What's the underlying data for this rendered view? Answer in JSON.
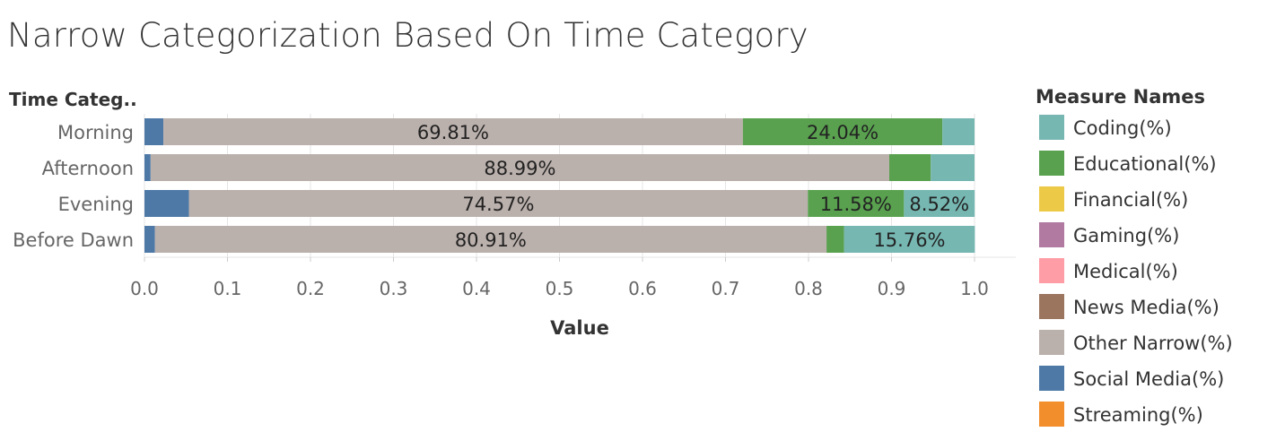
{
  "chart_data": {
    "type": "bar",
    "orientation": "horizontal",
    "stacked": true,
    "title": "Narrow Categorization Based On Time Category",
    "ylabel": "Time Categ..",
    "xlabel": "Value",
    "xlim": [
      0,
      1
    ],
    "x_ticks": [
      "0.0",
      "0.1",
      "0.2",
      "0.3",
      "0.4",
      "0.5",
      "0.6",
      "0.7",
      "0.8",
      "0.9",
      "1.0"
    ],
    "grid": true,
    "legend_title": "Measure Names",
    "legend_position": "right",
    "categories": [
      "Morning",
      "Afternoon",
      "Evening",
      "Before Dawn"
    ],
    "series": [
      {
        "name": "Social Media(%)",
        "color": "#4e79a7",
        "values": [
          0.0228,
          0.0074,
          0.0535,
          0.0126
        ]
      },
      {
        "name": "Other Narrow(%)",
        "color": "#bab0ac",
        "values": [
          0.6981,
          0.8899,
          0.7457,
          0.8091
        ]
      },
      {
        "name": "Educational(%)",
        "color": "#59a14f",
        "values": [
          0.2404,
          0.05,
          0.1158,
          0.0211
        ]
      },
      {
        "name": "Coding(%)",
        "color": "#76b7b2",
        "values": [
          0.0387,
          0.0527,
          0.0852,
          0.1576
        ]
      }
    ],
    "data_labels": [
      [
        "",
        "69.81%",
        "24.04%",
        ""
      ],
      [
        "",
        "88.99%",
        "",
        ""
      ],
      [
        "",
        "74.57%",
        "11.58%",
        "8.52%"
      ],
      [
        "",
        "80.91%",
        "",
        "15.76%"
      ]
    ],
    "legend": [
      {
        "name": "Coding(%)",
        "color": "#76b7b2"
      },
      {
        "name": "Educational(%)",
        "color": "#59a14f"
      },
      {
        "name": "Financial(%)",
        "color": "#edc948"
      },
      {
        "name": "Gaming(%)",
        "color": "#b07aa1"
      },
      {
        "name": "Medical(%)",
        "color": "#ff9da7"
      },
      {
        "name": "News Media(%)",
        "color": "#9c755f"
      },
      {
        "name": "Other Narrow(%)",
        "color": "#bab0ac"
      },
      {
        "name": "Social Media(%)",
        "color": "#4e79a7"
      },
      {
        "name": "Streaming(%)",
        "color": "#f28e2b"
      }
    ]
  }
}
